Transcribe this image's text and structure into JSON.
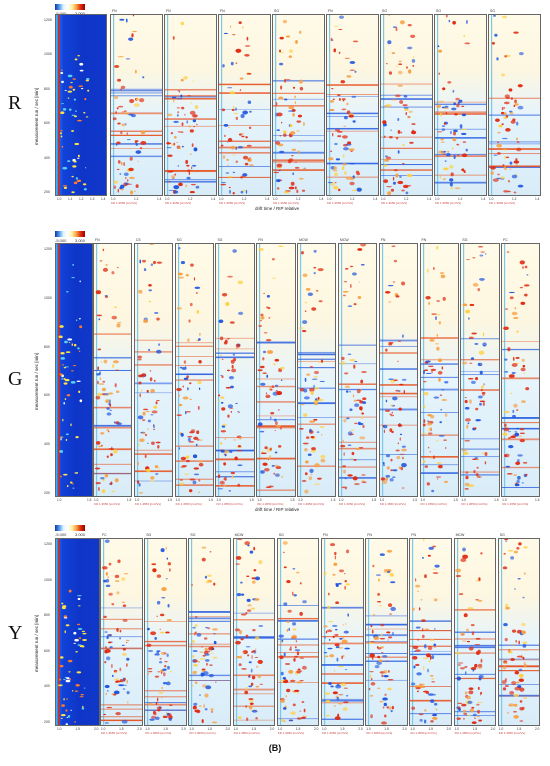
{
  "caption": "(B)",
  "rows": [
    {
      "letter": "R",
      "colorbar": {
        "min": "-5.000",
        "max": "3.000"
      },
      "ylabel": "measurement run / sec [min]",
      "xlabel": "drift time / RIP relative",
      "ref_xticks": [
        "1.0",
        "1.1",
        "1.2",
        "1.3",
        "1.4"
      ],
      "panel_titles": [
        "",
        "FN",
        "FN",
        "FN",
        "SG",
        "FN",
        "SG",
        "SG",
        "SG"
      ],
      "panel_xticks": [
        "1.0",
        "1.2",
        "1.4"
      ],
      "panel_note": "KD 1.3650 [cm²/Vs]"
    },
    {
      "letter": "G",
      "colorbar": {
        "min": "-5.000",
        "max": "3.000"
      },
      "ylabel": "measurement run / sec [min]",
      "xlabel": "drift time / RIP relative",
      "ref_xticks": [
        "1.0",
        "1.5"
      ],
      "panel_titles": [
        "",
        "FN",
        "CS",
        "SG",
        "SG",
        "FN",
        "MCW",
        "MCW",
        "FN",
        "FN",
        "SG",
        "FC"
      ],
      "panel_xticks": [
        "1.0",
        "1.5"
      ],
      "panel_note": "KD 1.3650 [cm²/Vs]"
    },
    {
      "letter": "Y",
      "colorbar": {
        "min": "-5.000",
        "max": "3.000"
      },
      "ylabel": "measurement run / sec [min]",
      "xlabel": "",
      "ref_xticks": [
        "1.0",
        "1.5",
        "2.0"
      ],
      "panel_titles": [
        "FC",
        "SG",
        "SG",
        "MCW",
        "SG",
        "FN",
        "FN",
        "FN",
        "MCW",
        "SG"
      ],
      "panel_xticks": [
        "1.0",
        "1.5",
        "2.0"
      ],
      "panel_note": "KD 1.3650 [cm²/Vs]"
    }
  ],
  "colors": {
    "deep_blue": "#0e35c8",
    "red": "#e02a10",
    "orange": "#f7a040",
    "light_blue": "#d8ecf8"
  }
}
